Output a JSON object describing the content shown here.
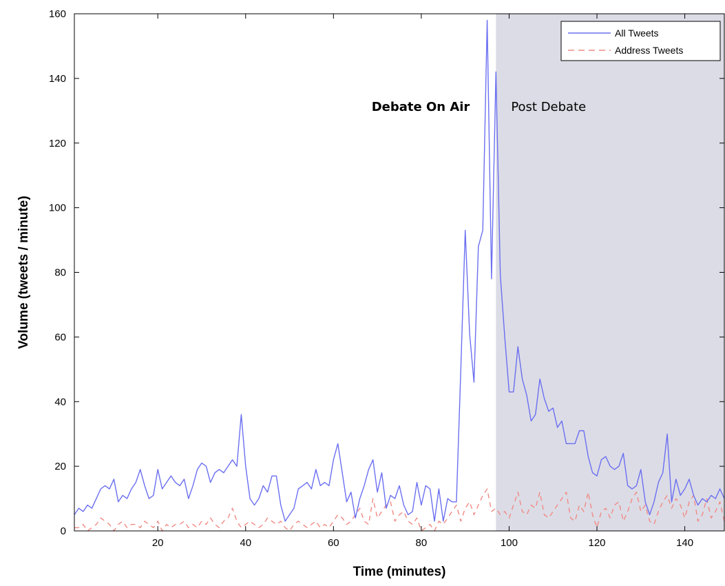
{
  "chart_data": {
    "type": "line",
    "xlabel": "Time (minutes)",
    "ylabel": "Volume (tweets / minute)",
    "xlim": [
      1,
      149
    ],
    "ylim": [
      0,
      160
    ],
    "xticks": [
      "20",
      "40",
      "60",
      "80",
      "100",
      "120",
      "140"
    ],
    "yticks": [
      "0",
      "20",
      "40",
      "60",
      "80",
      "100",
      "120",
      "140",
      "160"
    ],
    "grid": false,
    "legend_position": "top-right",
    "shaded_region": {
      "x_start": 97,
      "x_end": 149,
      "color": "#dcdce6"
    },
    "annotations": {
      "on_air": "Debate On Air",
      "post": "Post Debate"
    },
    "colors": {
      "all": "#6a6ff0",
      "address": "#f08a84"
    },
    "series": [
      {
        "name": "All Tweets",
        "style": "solid",
        "x": [
          1,
          2,
          3,
          4,
          5,
          6,
          7,
          8,
          9,
          10,
          11,
          12,
          13,
          14,
          15,
          16,
          17,
          18,
          19,
          20,
          21,
          22,
          23,
          24,
          25,
          26,
          27,
          28,
          29,
          30,
          31,
          32,
          33,
          34,
          35,
          36,
          37,
          38,
          39,
          40,
          41,
          42,
          43,
          44,
          45,
          46,
          47,
          48,
          49,
          50,
          51,
          52,
          53,
          54,
          55,
          56,
          57,
          58,
          59,
          60,
          61,
          62,
          63,
          64,
          65,
          66,
          67,
          68,
          69,
          70,
          71,
          72,
          73,
          74,
          75,
          76,
          77,
          78,
          79,
          80,
          81,
          82,
          83,
          84,
          85,
          86,
          87,
          88,
          89,
          90,
          91,
          92,
          93,
          94,
          95,
          96,
          97,
          98,
          99,
          100,
          101,
          102,
          103,
          104,
          105,
          106,
          107,
          108,
          109,
          110,
          111,
          112,
          113,
          114,
          115,
          116,
          117,
          118,
          119,
          120,
          121,
          122,
          123,
          124,
          125,
          126,
          127,
          128,
          129,
          130,
          131,
          132,
          133,
          134,
          135,
          136,
          137,
          138,
          139,
          140,
          141,
          142,
          143,
          144,
          145,
          146,
          147,
          148,
          149
        ],
        "values": [
          5,
          7,
          6,
          8,
          7,
          10,
          13,
          14,
          13,
          16,
          9,
          11,
          10,
          13,
          15,
          19,
          14,
          10,
          11,
          19,
          13,
          15,
          17,
          15,
          14,
          16,
          10,
          14,
          19,
          21,
          20,
          15,
          18,
          19,
          18,
          20,
          22,
          20,
          36,
          20,
          10,
          8,
          10,
          14,
          12,
          17,
          17,
          8,
          3,
          5,
          7,
          13,
          14,
          15,
          13,
          19,
          14,
          15,
          14,
          22,
          27,
          18,
          9,
          12,
          4,
          10,
          14,
          19,
          22,
          12,
          18,
          7,
          11,
          10,
          14,
          8,
          5,
          6,
          15,
          8,
          14,
          13,
          3,
          13,
          3,
          10,
          9,
          9,
          50,
          93,
          61,
          46,
          88,
          93,
          158,
          78,
          142,
          79,
          60,
          43,
          43,
          57,
          47,
          42,
          34,
          36,
          47,
          41,
          37,
          38,
          32,
          34,
          27,
          27,
          27,
          31,
          31,
          23,
          18,
          17,
          22,
          23,
          20,
          19,
          20,
          24,
          14,
          13,
          14,
          19,
          9,
          5,
          9,
          15,
          18,
          30,
          9,
          16,
          11,
          13,
          16,
          11,
          8,
          10,
          9,
          11,
          10,
          13,
          10
        ],
        "color": "#6a6ff0"
      },
      {
        "name": "Address Tweets",
        "style": "dashed",
        "x": [
          1,
          2,
          3,
          4,
          5,
          6,
          7,
          8,
          9,
          10,
          11,
          12,
          13,
          14,
          15,
          16,
          17,
          18,
          19,
          20,
          21,
          22,
          23,
          24,
          25,
          26,
          27,
          28,
          29,
          30,
          31,
          32,
          33,
          34,
          35,
          36,
          37,
          38,
          39,
          40,
          41,
          42,
          43,
          44,
          45,
          46,
          47,
          48,
          49,
          50,
          51,
          52,
          53,
          54,
          55,
          56,
          57,
          58,
          59,
          60,
          61,
          62,
          63,
          64,
          65,
          66,
          67,
          68,
          69,
          70,
          71,
          72,
          73,
          74,
          75,
          76,
          77,
          78,
          79,
          80,
          81,
          82,
          83,
          84,
          85,
          86,
          87,
          88,
          89,
          90,
          91,
          92,
          93,
          94,
          95,
          96,
          97,
          98,
          99,
          100,
          101,
          102,
          103,
          104,
          105,
          106,
          107,
          108,
          109,
          110,
          111,
          112,
          113,
          114,
          115,
          116,
          117,
          118,
          119,
          120,
          121,
          122,
          123,
          124,
          125,
          126,
          127,
          128,
          129,
          130,
          131,
          132,
          133,
          134,
          135,
          136,
          137,
          138,
          139,
          140,
          141,
          142,
          143,
          144,
          145,
          146,
          147,
          148,
          149
        ],
        "values": [
          1,
          1,
          2,
          0,
          1,
          2,
          4,
          3,
          2,
          0,
          2,
          3,
          1,
          2,
          2,
          1,
          3,
          2,
          1,
          3,
          0,
          2,
          1,
          2,
          2,
          3,
          1,
          2,
          1,
          3,
          2,
          4,
          2,
          1,
          3,
          4,
          7,
          3,
          1,
          2,
          3,
          2,
          1,
          2,
          4,
          3,
          2,
          3,
          1,
          0,
          2,
          3,
          2,
          1,
          2,
          3,
          1,
          2,
          1,
          3,
          5,
          4,
          2,
          3,
          5,
          7,
          3,
          2,
          10,
          4,
          6,
          8,
          9,
          3,
          5,
          6,
          3,
          2,
          4,
          0,
          1,
          2,
          0,
          3,
          2,
          4,
          6,
          8,
          3,
          7,
          9,
          5,
          8,
          11,
          13,
          6,
          7,
          5,
          6,
          4,
          8,
          12,
          6,
          5,
          8,
          7,
          12,
          5,
          4,
          6,
          8,
          10,
          12,
          4,
          3,
          8,
          6,
          12,
          5,
          1,
          6,
          7,
          4,
          8,
          9,
          3,
          6,
          10,
          12,
          6,
          8,
          3,
          2,
          6,
          9,
          11,
          7,
          10,
          8,
          4,
          9,
          11,
          3,
          5,
          10,
          4,
          6,
          9,
          3
        ],
        "color": "#f08a84"
      }
    ]
  }
}
